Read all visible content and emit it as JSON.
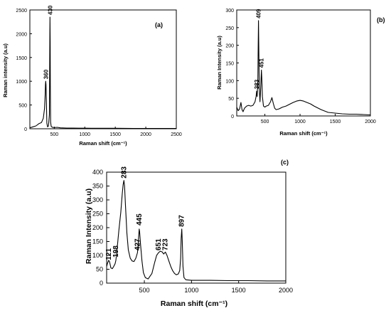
{
  "chart_data": [
    {
      "type": "line",
      "panel": "(a)",
      "xlabel": "Raman shift (cm⁻¹)",
      "ylabel": "Raman intensity (a.u)",
      "xlim": [
        100,
        2500
      ],
      "ylim": [
        0,
        2500
      ],
      "xticks": [
        500,
        1000,
        1500,
        2000,
        2500
      ],
      "yticks": [
        0,
        500,
        1000,
        1500,
        2000,
        2500
      ],
      "grid": false,
      "peak_labels": [
        {
          "text": "360",
          "x": 360,
          "y": 1000
        },
        {
          "text": "430",
          "x": 430,
          "y": 2350
        }
      ],
      "series": [
        {
          "x": [
            100,
            150,
            200,
            250,
            290,
            320,
            340,
            350,
            355,
            360,
            365,
            370,
            378,
            390,
            405,
            420,
            425,
            430,
            433,
            436,
            440,
            450,
            470,
            500,
            550,
            600,
            700,
            800,
            900,
            1000,
            1200,
            1500,
            1800,
            2000,
            2200,
            2500
          ],
          "y": [
            20,
            40,
            60,
            110,
            130,
            220,
            420,
            700,
            920,
            1000,
            930,
            600,
            120,
            40,
            60,
            300,
            1400,
            2350,
            1800,
            900,
            140,
            50,
            30,
            25,
            30,
            20,
            15,
            15,
            12,
            12,
            10,
            10,
            8,
            8,
            8,
            8
          ]
        }
      ]
    },
    {
      "type": "line",
      "panel": "(b)",
      "xlabel": "Raman shift (cm⁻¹)",
      "ylabel": "Raman Intensity (a.u)",
      "xlim": [
        100,
        2000
      ],
      "ylim": [
        0,
        300
      ],
      "xticks": [
        500,
        1000,
        1500,
        2000
      ],
      "yticks": [
        0,
        50,
        100,
        150,
        200,
        250,
        300
      ],
      "grid": false,
      "peak_labels": [
        {
          "text": "383",
          "x": 383,
          "y": 70
        },
        {
          "text": "409",
          "x": 409,
          "y": 270
        },
        {
          "text": "451",
          "x": 451,
          "y": 130
        }
      ],
      "series": [
        {
          "x": [
            100,
            120,
            140,
            160,
            175,
            190,
            210,
            240,
            270,
            300,
            330,
            360,
            375,
            383,
            390,
            400,
            405,
            409,
            413,
            420,
            430,
            440,
            447,
            451,
            456,
            465,
            480,
            500,
            520,
            550,
            580,
            600,
            620,
            640,
            660,
            700,
            750,
            800,
            850,
            900,
            950,
            1000,
            1050,
            1100,
            1150,
            1200,
            1300,
            1400,
            1500,
            1600,
            1700,
            1800,
            1900,
            2000
          ],
          "y": [
            25,
            15,
            20,
            38,
            18,
            12,
            22,
            28,
            30,
            28,
            30,
            40,
            55,
            70,
            55,
            100,
            200,
            270,
            200,
            80,
            40,
            75,
            110,
            130,
            110,
            55,
            28,
            25,
            28,
            30,
            40,
            52,
            35,
            22,
            18,
            20,
            25,
            28,
            33,
            38,
            42,
            44,
            42,
            38,
            34,
            28,
            18,
            10,
            8,
            6,
            5,
            5,
            4,
            3
          ]
        }
      ]
    },
    {
      "type": "line",
      "panel": "(c)",
      "xlabel": "Raman shift (cm⁻¹)",
      "ylabel": "Raman Intensity (a.u)",
      "xlim": [
        100,
        2000
      ],
      "ylim": [
        0,
        400
      ],
      "xticks": [
        500,
        1000,
        1500,
        2000
      ],
      "yticks": [
        0,
        50,
        100,
        150,
        200,
        250,
        300,
        350,
        400
      ],
      "grid": false,
      "peak_labels": [
        {
          "text": "121",
          "x": 121,
          "y": 75
        },
        {
          "text": "198",
          "x": 198,
          "y": 85
        },
        {
          "text": "283",
          "x": 283,
          "y": 370
        },
        {
          "text": "427",
          "x": 427,
          "y": 110
        },
        {
          "text": "445",
          "x": 445,
          "y": 200
        },
        {
          "text": "651",
          "x": 651,
          "y": 110
        },
        {
          "text": "723",
          "x": 723,
          "y": 110
        },
        {
          "text": "897",
          "x": 897,
          "y": 195
        }
      ],
      "series": [
        {
          "x": [
            100,
            110,
            121,
            130,
            145,
            160,
            175,
            190,
            198,
            210,
            230,
            250,
            265,
            275,
            283,
            290,
            300,
            315,
            330,
            350,
            370,
            390,
            410,
            427,
            440,
            445,
            450,
            460,
            475,
            490,
            510,
            540,
            580,
            610,
            630,
            651,
            670,
            690,
            705,
            723,
            740,
            760,
            780,
            800,
            820,
            840,
            860,
            875,
            885,
            890,
            897,
            902,
            910,
            920,
            940,
            1000,
            1200,
            1400,
            1600,
            1800,
            2000
          ],
          "y": [
            60,
            72,
            82,
            78,
            55,
            52,
            60,
            70,
            82,
            120,
            190,
            255,
            320,
            355,
            370,
            350,
            280,
            180,
            120,
            90,
            80,
            78,
            90,
            110,
            170,
            195,
            185,
            140,
            80,
            38,
            20,
            15,
            35,
            75,
            100,
            110,
            115,
            112,
            105,
            112,
            100,
            80,
            60,
            45,
            35,
            30,
            33,
            45,
            90,
            160,
            195,
            150,
            60,
            20,
            12,
            10,
            10,
            9,
            9,
            8,
            8
          ]
        }
      ]
    }
  ]
}
